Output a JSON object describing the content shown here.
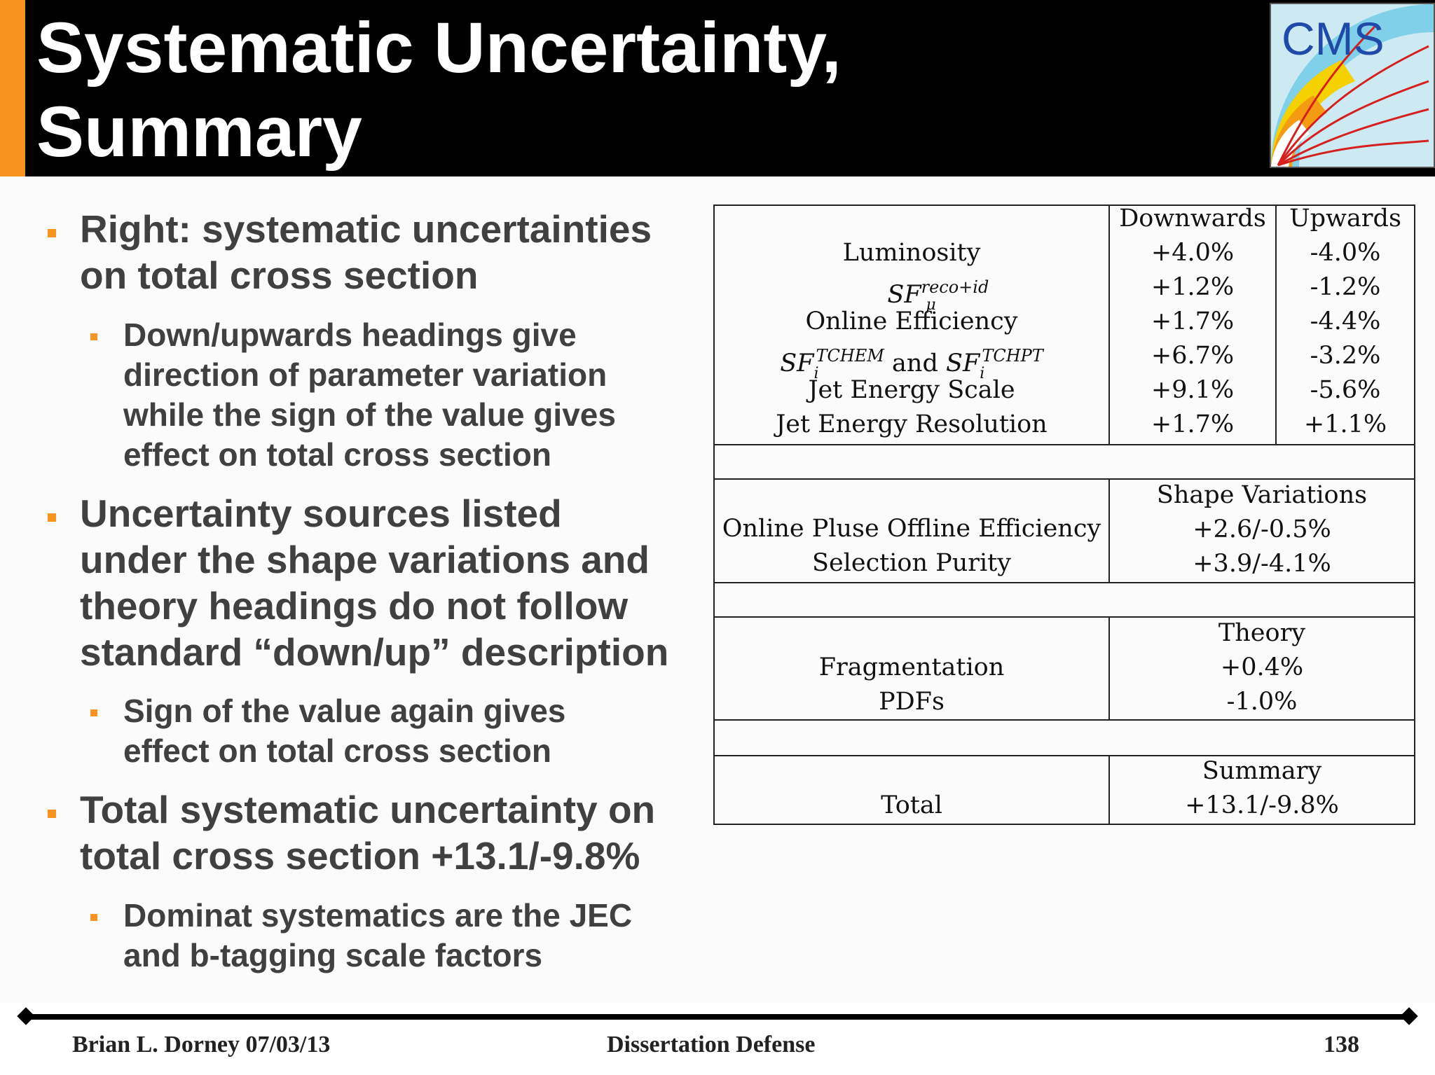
{
  "title": {
    "line1": "Systematic Uncertainty,",
    "line2": "Summary"
  },
  "logo": {
    "text": "CMS"
  },
  "bullets": [
    {
      "text_lines": [
        "Right: systematic uncertainties",
        "on total cross section"
      ]
    },
    {
      "text_lines": [
        "Down/upwards headings give",
        "direction of parameter variation",
        "while the sign of the value gives",
        "effect on total cross section"
      ]
    },
    {
      "text_lines": [
        "Uncertainty sources listed",
        "under the shape variations and",
        "theory headings do not follow",
        "standard “down/up” description"
      ]
    },
    {
      "text_lines": [
        "Sign of the value again gives",
        "effect on total cross section"
      ]
    },
    {
      "text_lines": [
        "Total systematic uncertainty on",
        "total cross section +13.1/-9.8%"
      ]
    },
    {
      "text_lines": [
        "Dominat systematics are the JEC",
        "and b-tagging scale factors"
      ]
    }
  ],
  "table": {
    "headers": {
      "down": "Downwards",
      "up": "Upwards"
    },
    "main_rows": [
      {
        "source": "Luminosity",
        "down": "+4.0%",
        "up": "-4.0%"
      },
      {
        "source": "SF",
        "source_sup": "reco+id",
        "source_sub": "μ",
        "down": "+1.2%",
        "up": "-1.2%"
      },
      {
        "source": "Online Efficiency",
        "down": "+1.7%",
        "up": "-4.4%"
      },
      {
        "source": "SF",
        "source_sup": "TCHEM",
        "source_sub": "i",
        "source_mid": "and",
        "source2": "SF",
        "source2_sup": "TCHPT",
        "source2_sub": "i",
        "down": "+6.7%",
        "up": "-3.2%"
      },
      {
        "source": "Jet Energy Scale",
        "down": "+9.1%",
        "up": "-5.6%"
      },
      {
        "source": "Jet Energy Resolution",
        "down": "+1.7%",
        "up": "+1.1%"
      }
    ],
    "shape": {
      "heading": "Shape Variations",
      "rows": [
        {
          "source": "Online Pluse Offline Efficiency",
          "value": "+2.6/-0.5%"
        },
        {
          "source": "Selection Purity",
          "value": "+3.9/-4.1%"
        }
      ]
    },
    "theory": {
      "heading": "Theory",
      "rows": [
        {
          "source": "Fragmentation",
          "value": "+0.4%"
        },
        {
          "source": "PDFs",
          "value": "-1.0%"
        }
      ]
    },
    "summary": {
      "heading": "Summary",
      "rows": [
        {
          "source": "Total",
          "value": "+13.1/-9.8%"
        }
      ]
    }
  },
  "footer": {
    "left": "Brian L. Dorney 07/03/13",
    "center": "Dissertation Defense",
    "page": "138"
  },
  "colors": {
    "accent": "#f7931e",
    "header_bg": "#000000",
    "text": "#404040"
  }
}
